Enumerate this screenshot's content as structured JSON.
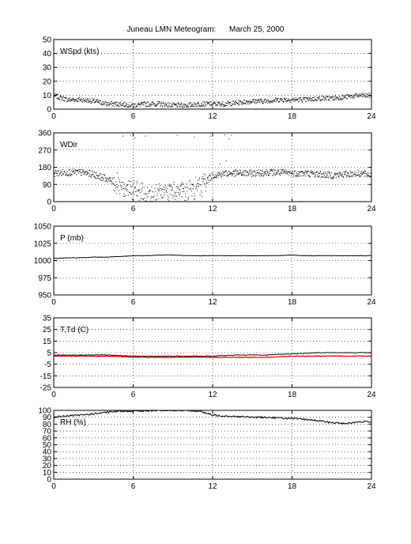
{
  "figure": {
    "title": "Juneau LMN Meteogram:      March 25, 2000"
  },
  "chart_data": [
    {
      "type": "scatter",
      "label": "WSpd (kts)",
      "xlim": [
        0,
        24
      ],
      "ylim": [
        0,
        50
      ],
      "xticks": [
        0,
        6,
        12,
        18,
        24
      ],
      "yticks": [
        0,
        10,
        20,
        30,
        40,
        50
      ],
      "grid": true,
      "series": [
        {
          "color": "#000000",
          "markers": "dots",
          "x": [
            0,
            1,
            2,
            3,
            4,
            5,
            6,
            7,
            8,
            9,
            10,
            11,
            12,
            13,
            14,
            15,
            16,
            17,
            18,
            19,
            20,
            21,
            22,
            23,
            24
          ],
          "y": [
            10,
            7,
            7,
            6,
            4,
            4,
            3,
            4,
            4,
            3,
            3,
            4,
            4,
            4,
            5,
            6,
            6,
            7,
            7,
            7,
            8,
            8,
            9,
            10,
            10
          ]
        }
      ]
    },
    {
      "type": "scatter",
      "label": "WDir",
      "xlim": [
        0,
        24
      ],
      "ylim": [
        0,
        360
      ],
      "xticks": [
        0,
        6,
        12,
        18,
        24
      ],
      "yticks": [
        0,
        90,
        180,
        270,
        360
      ],
      "grid": true,
      "series": [
        {
          "color": "#000000",
          "markers": "dots",
          "x": [
            0,
            1,
            2,
            3,
            4,
            5,
            6,
            7,
            8,
            9,
            10,
            11,
            12,
            13,
            14,
            15,
            16,
            17,
            18,
            19,
            20,
            21,
            22,
            23,
            24
          ],
          "y": [
            150,
            155,
            155,
            145,
            120,
            90,
            60,
            30,
            40,
            60,
            50,
            80,
            140,
            150,
            150,
            150,
            155,
            155,
            150,
            150,
            145,
            140,
            145,
            150,
            140
          ]
        }
      ]
    },
    {
      "type": "line",
      "label": "P (mb)",
      "xlim": [
        0,
        24
      ],
      "ylim": [
        950,
        1050
      ],
      "xticks": [
        0,
        6,
        12,
        18,
        24
      ],
      "yticks": [
        950,
        975,
        1000,
        1025,
        1050
      ],
      "grid": true,
      "series": [
        {
          "color": "#000000",
          "x": [
            0,
            1,
            2,
            3,
            4,
            5,
            6,
            7,
            8,
            9,
            10,
            11,
            12,
            13,
            14,
            15,
            16,
            17,
            18,
            19,
            20,
            21,
            22,
            23,
            24
          ],
          "y": [
            1003,
            1004,
            1004,
            1005,
            1005,
            1006,
            1007,
            1007,
            1008,
            1008,
            1007,
            1007,
            1007,
            1007,
            1007,
            1007,
            1007,
            1007,
            1008,
            1007,
            1007,
            1007,
            1007,
            1007,
            1007
          ]
        }
      ]
    },
    {
      "type": "line",
      "label": "T,Td (C)",
      "xlim": [
        0,
        24
      ],
      "ylim": [
        -25,
        35
      ],
      "xticks": [
        0,
        6,
        12,
        18,
        24
      ],
      "yticks": [
        -25,
        -15,
        -5,
        5,
        15,
        25,
        35
      ],
      "grid": true,
      "series": [
        {
          "color": "#000000",
          "x": [
            0,
            2,
            4,
            6,
            8,
            10,
            12,
            14,
            16,
            18,
            20,
            22,
            24
          ],
          "y": [
            3,
            3,
            3,
            2,
            2,
            2,
            2,
            3,
            3,
            4,
            5,
            5,
            5
          ]
        },
        {
          "color": "#ff0000",
          "x": [
            0,
            2,
            4,
            6,
            8,
            10,
            12,
            14,
            16,
            18,
            20,
            22,
            24
          ],
          "y": [
            2,
            2,
            2,
            1,
            1,
            1,
            1,
            1,
            1,
            2,
            2,
            2,
            2
          ]
        }
      ]
    },
    {
      "type": "line",
      "label": "RH (%)",
      "xlim": [
        0,
        24
      ],
      "ylim": [
        0,
        100
      ],
      "xticks": [
        0,
        6,
        12,
        18,
        24
      ],
      "yticks": [
        0,
        10,
        20,
        30,
        40,
        50,
        60,
        70,
        80,
        90,
        100
      ],
      "grid": true,
      "series": [
        {
          "color": "#000000",
          "x": [
            0,
            1,
            2,
            3,
            4,
            5,
            6,
            7,
            8,
            9,
            10,
            11,
            12,
            13,
            14,
            15,
            16,
            17,
            18,
            19,
            20,
            21,
            22,
            23,
            24
          ],
          "y": [
            90,
            92,
            93,
            95,
            97,
            99,
            99,
            99,
            100,
            100,
            100,
            99,
            93,
            92,
            91,
            90,
            90,
            89,
            88,
            87,
            85,
            82,
            81,
            83,
            84
          ]
        }
      ]
    }
  ]
}
